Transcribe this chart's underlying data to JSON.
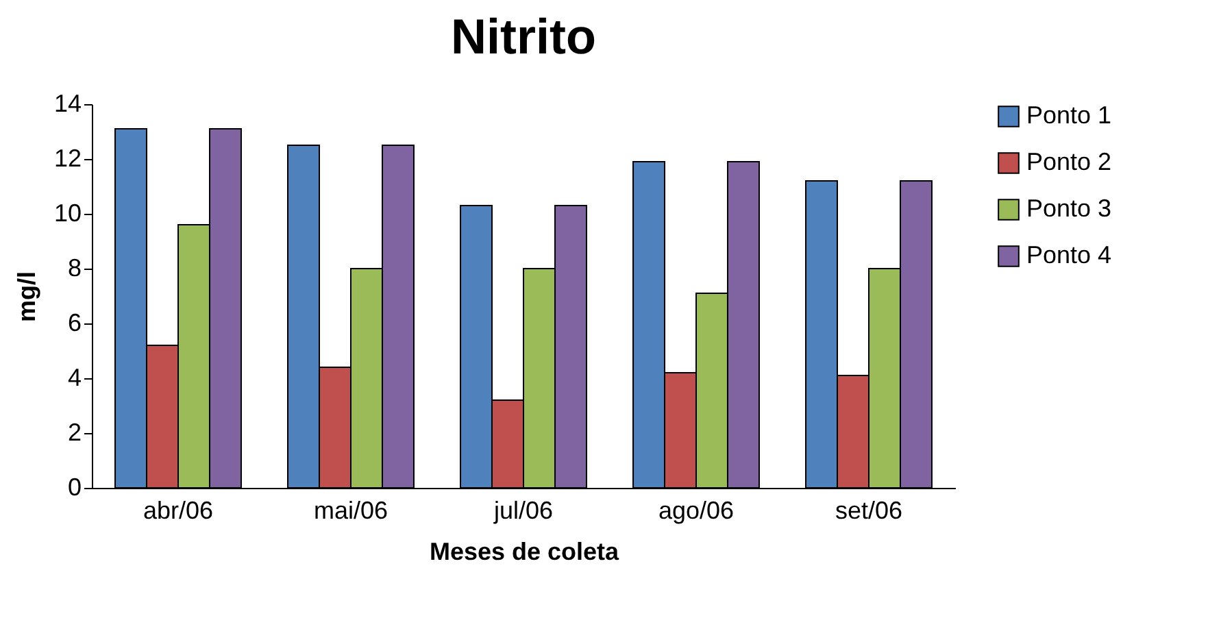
{
  "chart_data": {
    "type": "bar",
    "title": "Nitrito",
    "xlabel": "Meses de coleta",
    "ylabel": "mg/l",
    "categories": [
      "abr/06",
      "mai/06",
      "jul/06",
      "ago/06",
      "set/06"
    ],
    "series": [
      {
        "name": "Ponto 1",
        "color": "#4f81bd",
        "values": [
          13.1,
          12.5,
          10.3,
          11.9,
          11.2
        ]
      },
      {
        "name": "Ponto 2",
        "color": "#c0504d",
        "values": [
          5.2,
          4.4,
          3.2,
          4.2,
          4.1
        ]
      },
      {
        "name": "Ponto 3",
        "color": "#9bbb59",
        "values": [
          9.6,
          8.0,
          8.0,
          7.1,
          8.0
        ]
      },
      {
        "name": "Ponto 4",
        "color": "#8064a2",
        "values": [
          13.1,
          12.5,
          10.3,
          11.9,
          11.2
        ]
      }
    ],
    "ylim": [
      0,
      14
    ],
    "yticks": [
      0,
      2,
      4,
      6,
      8,
      10,
      12,
      14
    ],
    "grid": false,
    "legend": "right"
  }
}
